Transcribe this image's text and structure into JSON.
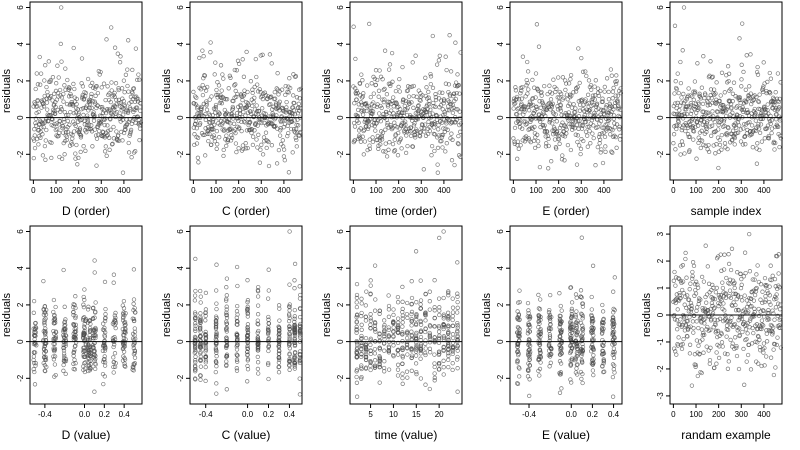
{
  "chart_data": [
    {
      "type": "scatter",
      "ylabel": "residuals",
      "xlabel": "D (order)",
      "xlim": [
        -15,
        480
      ],
      "ylim": [
        -3.4,
        6.3
      ],
      "xticks": [
        0,
        100,
        200,
        300,
        400
      ],
      "yticks": [
        -2,
        0,
        2,
        4,
        6
      ],
      "hline": 0,
      "gen": {
        "mode": "uniform",
        "seed": 11
      }
    },
    {
      "type": "scatter",
      "ylabel": "residuals",
      "xlabel": "C (order)",
      "xlim": [
        -15,
        480
      ],
      "ylim": [
        -3.4,
        6.3
      ],
      "xticks": [
        0,
        100,
        200,
        300,
        400
      ],
      "yticks": [
        -2,
        0,
        2,
        4,
        6
      ],
      "hline": 0,
      "gen": {
        "mode": "uniform",
        "seed": 12
      }
    },
    {
      "type": "scatter",
      "ylabel": "residuals",
      "xlabel": "time (order)",
      "xlim": [
        -15,
        480
      ],
      "ylim": [
        -3.4,
        6.3
      ],
      "xticks": [
        0,
        100,
        200,
        300,
        400
      ],
      "yticks": [
        -2,
        0,
        2,
        4,
        6
      ],
      "hline": 0,
      "gen": {
        "mode": "uniform",
        "seed": 13
      }
    },
    {
      "type": "scatter",
      "ylabel": "residuals",
      "xlabel": "E (order)",
      "xlim": [
        -15,
        480
      ],
      "ylim": [
        -3.4,
        6.3
      ],
      "xticks": [
        0,
        100,
        200,
        300,
        400
      ],
      "yticks": [
        -2,
        0,
        2,
        4,
        6
      ],
      "hline": 0,
      "gen": {
        "mode": "uniform",
        "seed": 14
      }
    },
    {
      "type": "scatter",
      "ylabel": "residuals",
      "xlabel": "sample index",
      "xlim": [
        -15,
        480
      ],
      "ylim": [
        -3.4,
        6.3
      ],
      "xticks": [
        0,
        100,
        200,
        300,
        400
      ],
      "yticks": [
        -2,
        0,
        2,
        4,
        6
      ],
      "hline": 0,
      "gen": {
        "mode": "uniform",
        "seed": 15
      }
    },
    {
      "type": "scatter",
      "ylabel": "residuals",
      "xlabel": "D (value)",
      "xlim": [
        -0.55,
        0.58
      ],
      "ylim": [
        -3.4,
        6.3
      ],
      "xticks": [
        -0.4,
        0.0,
        0.2,
        0.4
      ],
      "xticklabels": [
        "-0.4",
        "0.0",
        "0.2",
        "0.4"
      ],
      "yticks": [
        -2,
        0,
        2,
        4,
        6
      ],
      "hline": 0,
      "gen": {
        "mode": "clustered",
        "seed": 21,
        "centers": [
          -0.5,
          -0.4,
          -0.3,
          -0.2,
          -0.1,
          0.0,
          0.05,
          0.1,
          0.2,
          0.3,
          0.4,
          0.5
        ],
        "jitter": 0.015
      }
    },
    {
      "type": "scatter",
      "ylabel": "residuals",
      "xlabel": "C (value)",
      "xlim": [
        -0.55,
        0.52
      ],
      "ylim": [
        -3.4,
        6.3
      ],
      "xticks": [
        -0.4,
        0.0,
        0.2,
        0.4
      ],
      "xticklabels": [
        "-0.4",
        "0.0",
        "0.2",
        "0.4"
      ],
      "yticks": [
        -2,
        0,
        2,
        4,
        6
      ],
      "hline": 0,
      "gen": {
        "mode": "clustered",
        "seed": 22,
        "centers": [
          -0.5,
          -0.45,
          -0.4,
          -0.3,
          -0.2,
          -0.1,
          0.0,
          0.1,
          0.2,
          0.3,
          0.4,
          0.45,
          0.5
        ],
        "jitter": 0.004
      }
    },
    {
      "type": "scatter",
      "ylabel": "residuals",
      "xlabel": "time (value)",
      "xlim": [
        0.5,
        25
      ],
      "ylim": [
        -3.4,
        6.3
      ],
      "xticks": [
        5,
        10,
        15,
        20
      ],
      "yticks": [
        -2,
        0,
        2,
        4,
        6
      ],
      "hline": 0,
      "gen": {
        "mode": "clustered",
        "seed": 23,
        "centers": [
          2,
          3,
          4,
          5,
          6,
          7,
          8,
          9,
          10,
          11,
          12,
          13,
          14,
          15,
          16,
          17,
          18,
          19,
          20,
          21,
          22,
          23,
          24
        ],
        "jitter": 0.06
      }
    },
    {
      "type": "scatter",
      "ylabel": "residuals",
      "xlabel": "E (value)",
      "xlim": [
        -0.58,
        0.48
      ],
      "ylim": [
        -3.4,
        6.3
      ],
      "xticks": [
        -0.4,
        0.0,
        0.2,
        0.4
      ],
      "xticklabels": [
        "-0.4",
        "0.0",
        "0.2",
        "0.4"
      ],
      "yticks": [
        -2,
        0,
        2,
        4,
        6
      ],
      "hline": 0,
      "gen": {
        "mode": "clustered",
        "seed": 24,
        "centers": [
          -0.5,
          -0.4,
          -0.3,
          -0.2,
          -0.1,
          0.0,
          0.05,
          0.1,
          0.2,
          0.3,
          0.4
        ],
        "jitter": 0.012
      }
    },
    {
      "type": "scatter",
      "ylabel": "residuals",
      "xlabel": "randam example",
      "xlim": [
        -15,
        480
      ],
      "ylim": [
        -3.3,
        3.3
      ],
      "xticks": [
        0,
        100,
        200,
        300,
        400
      ],
      "yticks": [
        -3,
        -2,
        -1,
        0,
        1,
        2,
        3
      ],
      "hline": 0,
      "gen": {
        "mode": "normal",
        "seed": 25
      }
    }
  ],
  "style": {
    "point_color": "#4d4d4d",
    "axis_color": "#000000",
    "bg_color": "#ffffff"
  }
}
